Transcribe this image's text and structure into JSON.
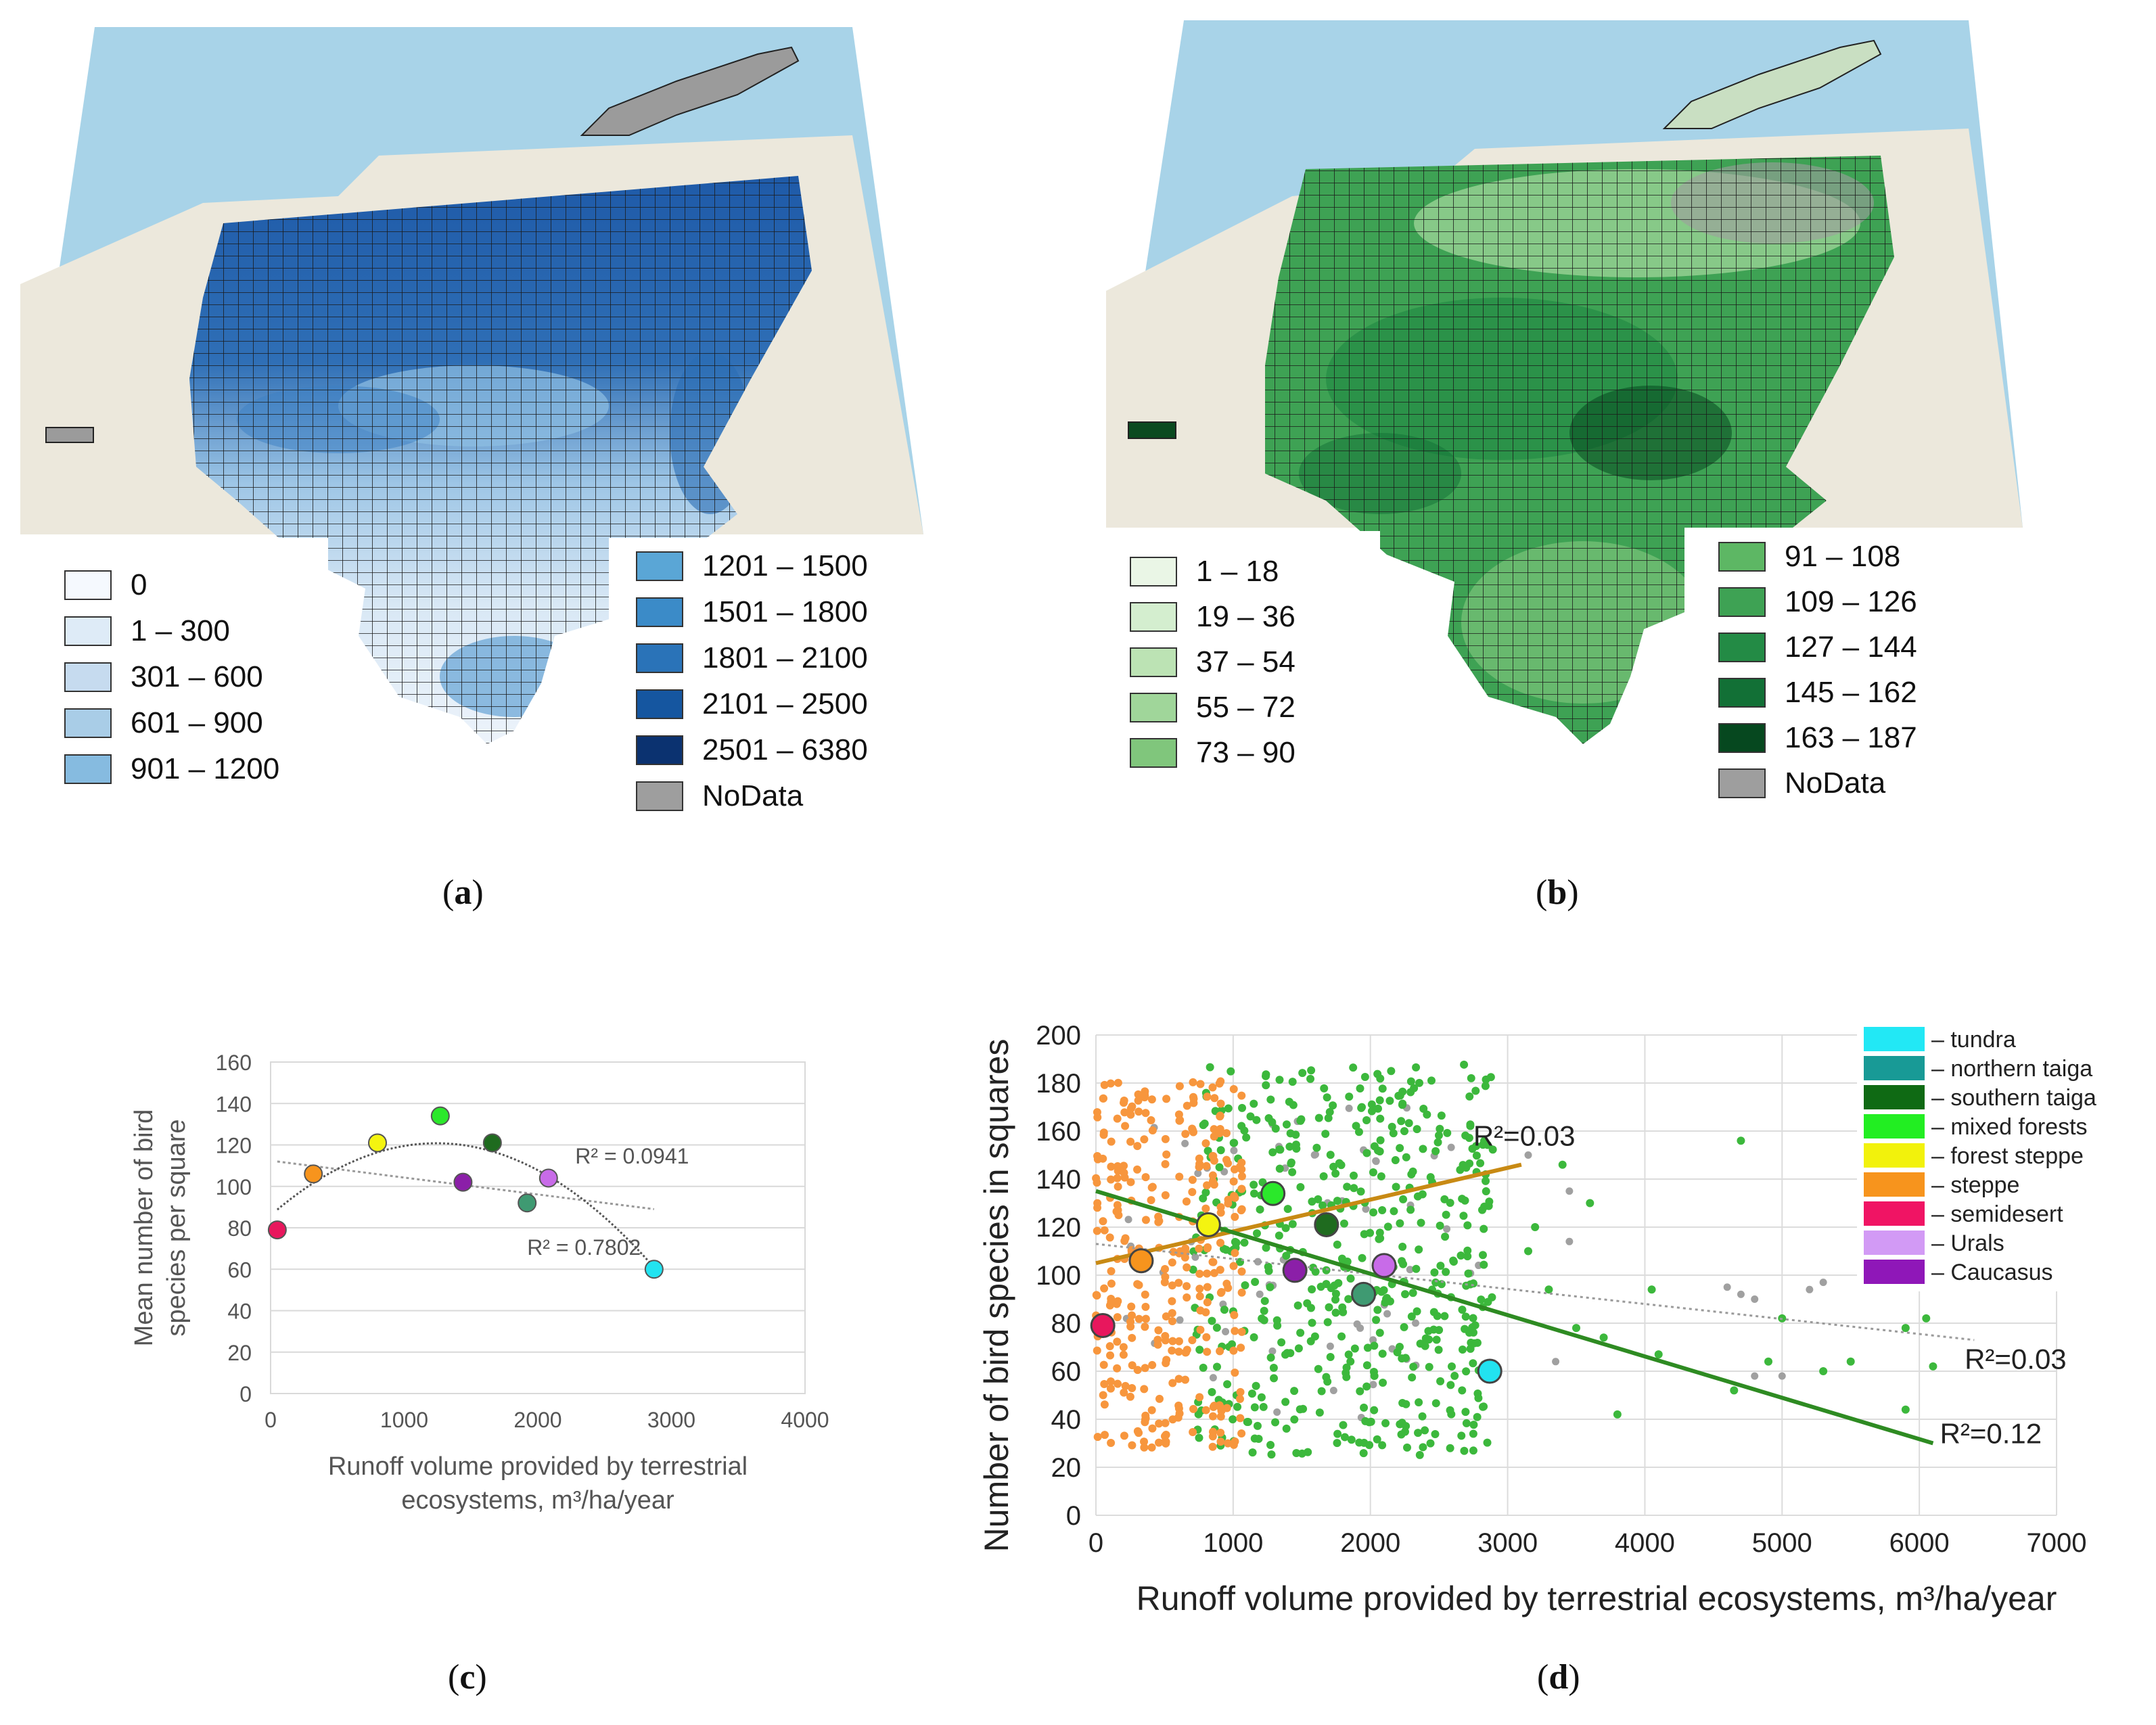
{
  "panels": {
    "a": {
      "caption": "a",
      "legend_left": [
        {
          "label": "0",
          "color": "#f5f9fe"
        },
        {
          "label": "1 – 300",
          "color": "#deebf7"
        },
        {
          "label": "301 – 600",
          "color": "#c6dbef"
        },
        {
          "label": "601 – 900",
          "color": "#a9cde7"
        },
        {
          "label": "901 – 1200",
          "color": "#86bbe0"
        }
      ],
      "legend_right": [
        {
          "label": "1201 – 1500",
          "color": "#5aa6d6"
        },
        {
          "label": "1501 – 1800",
          "color": "#3b8bc8"
        },
        {
          "label": "1801 – 2100",
          "color": "#2a73b8"
        },
        {
          "label": "2101 – 2500",
          "color": "#1556a0"
        },
        {
          "label": "2501 – 6380",
          "color": "#0b3270"
        },
        {
          "label": "NoData",
          "color": "#9e9e9e"
        }
      ]
    },
    "b": {
      "caption": "b",
      "legend_left": [
        {
          "label": "1 – 18",
          "color": "#eaf6e6"
        },
        {
          "label": "19 – 36",
          "color": "#d4eecf"
        },
        {
          "label": "37 – 54",
          "color": "#bce3b4"
        },
        {
          "label": "55 – 72",
          "color": "#a0d69a"
        },
        {
          "label": "73 – 90",
          "color": "#80c67c"
        }
      ],
      "legend_right": [
        {
          "label": "91 – 108",
          "color": "#5db764"
        },
        {
          "label": "109 – 126",
          "color": "#3ea254"
        },
        {
          "label": "127 – 144",
          "color": "#238b45"
        },
        {
          "label": "145 – 162",
          "color": "#127036"
        },
        {
          "label": "163 – 187",
          "color": "#06481f"
        },
        {
          "label": "NoData",
          "color": "#9e9e9e"
        }
      ]
    },
    "c": {
      "caption": "c"
    },
    "d": {
      "caption": "d"
    }
  },
  "chart_data": [
    {
      "id": "c",
      "type": "scatter",
      "xlabel_line1": "Runoff volume provided by terrestrial",
      "xlabel_line2": "ecosystems, m³/ha/year",
      "ylabel_line1": "Mean number of bird",
      "ylabel_line2": "species per square",
      "xlim": [
        0,
        4000
      ],
      "ylim": [
        0,
        160
      ],
      "xticks": [
        0,
        1000,
        2000,
        3000,
        4000
      ],
      "yticks": [
        0,
        20,
        40,
        60,
        80,
        100,
        120,
        140,
        160
      ],
      "points": [
        {
          "zone": "semidesert",
          "x": 50,
          "y": 79,
          "color": "#e8175d"
        },
        {
          "zone": "steppe",
          "x": 320,
          "y": 106,
          "color": "#f7941d"
        },
        {
          "zone": "forest steppe",
          "x": 800,
          "y": 121,
          "color": "#f4f410"
        },
        {
          "zone": "mixed forests",
          "x": 1270,
          "y": 134,
          "color": "#2be82b"
        },
        {
          "zone": "Caucasus",
          "x": 1440,
          "y": 102,
          "color": "#8b1fa8"
        },
        {
          "zone": "southern taiga",
          "x": 1660,
          "y": 121,
          "color": "#1f6b1f"
        },
        {
          "zone": "northern taiga",
          "x": 1920,
          "y": 92,
          "color": "#3f9a72"
        },
        {
          "zone": "Urals",
          "x": 2080,
          "y": 104,
          "color": "#c86be8"
        },
        {
          "zone": "tundra",
          "x": 2870,
          "y": 60,
          "color": "#22e3f0"
        }
      ],
      "trend_linear": {
        "x": [
          50,
          2870
        ],
        "y": [
          112,
          89
        ]
      },
      "trend_poly_coeffs": [
        86.0,
        0.0561,
        -2.26e-05
      ],
      "r2_linear": "R² = 0.0941",
      "r2_poly": "R² = 0.7802"
    },
    {
      "id": "d",
      "type": "scatter",
      "xlabel": "Runoff volume provided by terrestrial ecosystems, m³/ha/year",
      "ylabel": "Number of bird species in squares",
      "xlim": [
        0,
        7000
      ],
      "ylim": [
        0,
        200
      ],
      "xticks": [
        0,
        1000,
        2000,
        3000,
        4000,
        5000,
        6000,
        7000
      ],
      "yticks": [
        0,
        20,
        40,
        60,
        80,
        100,
        120,
        140,
        160,
        180,
        200
      ],
      "legend": [
        {
          "label": "– tundra",
          "color": "#22e8f5"
        },
        {
          "label": "– northern taiga",
          "color": "#189a96"
        },
        {
          "label": "– southern taiga",
          "color": "#0f6a14"
        },
        {
          "label": "– mixed forests",
          "color": "#22ee22"
        },
        {
          "label": "– forest steppe",
          "color": "#f2f20c"
        },
        {
          "label": "– steppe",
          "color": "#f7941d"
        },
        {
          "label": "– semidesert",
          "color": "#f01464"
        },
        {
          "label": "– Urals",
          "color": "#d29af5"
        },
        {
          "label": "– Caucasus",
          "color": "#8f17b8"
        }
      ],
      "means": [
        {
          "zone": "semidesert",
          "x": 50,
          "y": 79,
          "color": "#e8175d"
        },
        {
          "zone": "steppe",
          "x": 330,
          "y": 106,
          "color": "#f7941d"
        },
        {
          "zone": "forest steppe",
          "x": 820,
          "y": 121,
          "color": "#f4f410"
        },
        {
          "zone": "mixed forests",
          "x": 1290,
          "y": 134,
          "color": "#2be82b"
        },
        {
          "zone": "Caucasus",
          "x": 1450,
          "y": 102,
          "color": "#8b1fa8"
        },
        {
          "zone": "southern taiga",
          "x": 1680,
          "y": 121,
          "color": "#1f6b1f"
        },
        {
          "zone": "northern taiga",
          "x": 1950,
          "y": 92,
          "color": "#3f9a72"
        },
        {
          "zone": "Urals",
          "x": 2100,
          "y": 104,
          "color": "#c86be8"
        },
        {
          "zone": "tundra",
          "x": 2870,
          "y": 60,
          "color": "#22e3f0"
        }
      ],
      "trend_steppe": {
        "x": [
          0,
          3100
        ],
        "y": [
          105,
          146
        ],
        "color": "#c88a14",
        "label": "R²=0.03"
      },
      "trend_forest": {
        "x": [
          0,
          6100
        ],
        "y": [
          135,
          30
        ],
        "color": "#2e8b22",
        "label": "R²=0.12"
      },
      "trend_all": {
        "x": [
          0,
          6400
        ],
        "y": [
          113,
          73
        ],
        "color": "#9a9a9a",
        "label": "R²=0.03"
      },
      "clouds": {
        "steppe": {
          "color": "#f7963d",
          "xmin": 0,
          "xmax": 1100,
          "ymin": 28,
          "ymax": 182,
          "n": 330
        },
        "forest": {
          "color": "#3cb83c",
          "xmin": 700,
          "xmax": 2900,
          "ymin": 25,
          "ymax": 188,
          "n": 520
        },
        "forest_outliers": [
          [
            3300,
            94
          ],
          [
            3500,
            78
          ],
          [
            3700,
            74
          ],
          [
            3800,
            42
          ],
          [
            4050,
            94
          ],
          [
            4100,
            67
          ],
          [
            4650,
            52
          ],
          [
            4700,
            156
          ],
          [
            4900,
            64
          ],
          [
            5000,
            82
          ],
          [
            5300,
            60
          ],
          [
            5500,
            64
          ],
          [
            5900,
            44
          ],
          [
            5900,
            78
          ],
          [
            6050,
            82
          ],
          [
            6100,
            62
          ],
          [
            3150,
            110
          ],
          [
            3400,
            146
          ],
          [
            3600,
            130
          ],
          [
            3200,
            120
          ]
        ],
        "grey_outliers": [
          [
            3150,
            150
          ],
          [
            3450,
            135
          ],
          [
            3450,
            114
          ],
          [
            4600,
            95
          ],
          [
            4700,
            92
          ],
          [
            4800,
            90
          ],
          [
            5200,
            94
          ],
          [
            5300,
            97
          ],
          [
            5000,
            58
          ],
          [
            4800,
            58
          ],
          [
            3350,
            64
          ]
        ]
      }
    }
  ]
}
